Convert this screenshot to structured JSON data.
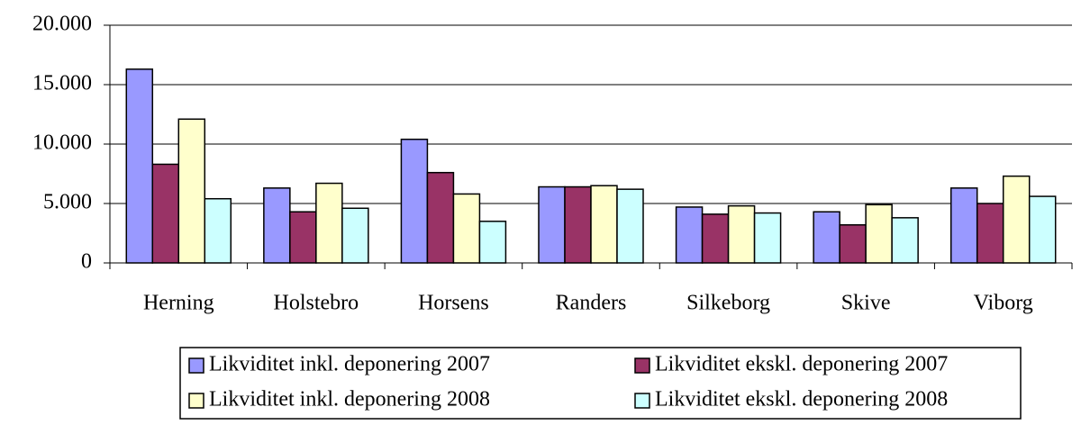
{
  "chart_data": {
    "type": "bar",
    "categories": [
      "Herning",
      "Holstebro",
      "Horsens",
      "Randers",
      "Silkeborg",
      "Skive",
      "Viborg"
    ],
    "series": [
      {
        "name": "Likviditet inkl. deponering 2007",
        "color": "#9999ff",
        "values": [
          16300,
          6300,
          10400,
          6400,
          4700,
          4300,
          6300
        ]
      },
      {
        "name": "Likviditet ekskl. deponering 2007",
        "color": "#993366",
        "values": [
          8300,
          4300,
          7600,
          6400,
          4100,
          3200,
          5000
        ]
      },
      {
        "name": "Likviditet inkl. deponering 2008",
        "color": "#ffffcc",
        "values": [
          12100,
          6700,
          5800,
          6500,
          4800,
          4900,
          7300
        ]
      },
      {
        "name": "Likviditet ekskl. deponering 2008",
        "color": "#ccffff",
        "values": [
          5400,
          4600,
          3500,
          6200,
          4200,
          3800,
          5600
        ]
      }
    ],
    "ylim": [
      0,
      20000
    ],
    "yticks": [
      0,
      {
        "value": 5000,
        "label": "5.000"
      },
      {
        "value": 10000,
        "label": "10.000"
      },
      {
        "value": 15000,
        "label": "15.000"
      },
      {
        "value": 20000,
        "label": "20.000"
      }
    ],
    "grid": true,
    "legend": "bottom"
  }
}
